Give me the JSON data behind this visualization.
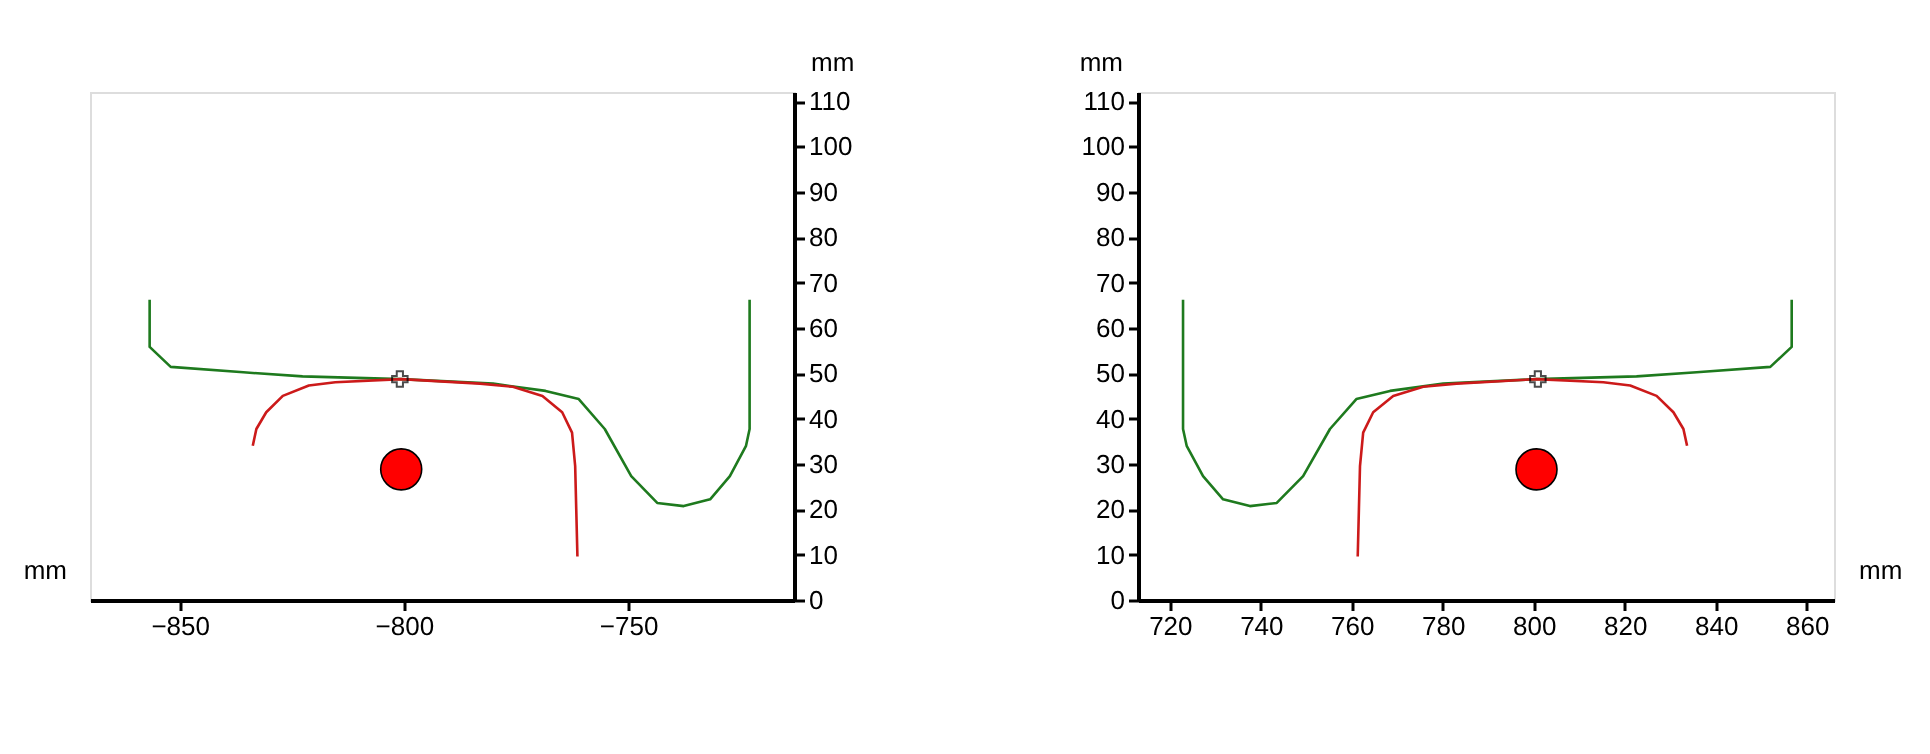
{
  "chart_data": [
    {
      "type": "line",
      "xlabel": "mm",
      "ylabel": "mm",
      "xlim": [
        -870,
        -713
      ],
      "xticks": [
        -850,
        -800,
        -750
      ],
      "ylim": [
        0,
        112
      ],
      "yticks": [
        0,
        10,
        20,
        30,
        40,
        50,
        60,
        70,
        80,
        90,
        100,
        110
      ],
      "grid": false,
      "series": [
        {
          "color": "#1e7a1e",
          "x": [
            -856.7,
            -856.7,
            -852,
            -835.8,
            -822.6,
            -800.6,
            -780.1,
            -768.4,
            -761,
            -755.2,
            -749.3,
            -743.5,
            -737.6,
            -731.7,
            -727.3,
            -723.7,
            -722.9,
            -722.9
          ],
          "values": [
            66.2,
            55.8,
            51.4,
            50.2,
            49.3,
            48.7,
            47.7,
            46.1,
            44.3,
            37.7,
            27.3,
            21.4,
            20.7,
            22.2,
            27.3,
            34,
            37.7,
            66.2
          ]
        },
        {
          "color": "#cc1a1a",
          "x": [
            -833.7,
            -832.9,
            -830.7,
            -827,
            -821.2,
            -815.3,
            -800.6,
            -783,
            -775.7,
            -769.1,
            -764.7,
            -762.5,
            -761.8,
            -761.3
          ],
          "values": [
            34,
            37.7,
            41.4,
            45,
            47.3,
            48,
            48.7,
            47.7,
            47,
            45,
            41.4,
            36.9,
            29.5,
            9.6
          ]
        },
        {
          "type": "scatter",
          "marker": "circle",
          "color": "#ff0000",
          "x": [
            -800.6
          ],
          "values": [
            28.8
          ]
        },
        {
          "type": "scatter",
          "marker": "cross",
          "color": "#000000",
          "x": [
            -800.9
          ],
          "values": [
            48.7
          ]
        }
      ]
    },
    {
      "type": "line",
      "xlabel": "mm",
      "ylabel": "mm",
      "xlim": [
        713,
        866
      ],
      "xticks": [
        720,
        740,
        760,
        780,
        800,
        820,
        840,
        860
      ],
      "ylim": [
        0,
        112
      ],
      "yticks": [
        0,
        10,
        20,
        30,
        40,
        50,
        60,
        70,
        80,
        90,
        100,
        110
      ],
      "grid": false,
      "series": [
        {
          "color": "#1e7a1e",
          "x": [
            722.9,
            722.9,
            723.7,
            727.3,
            731.7,
            737.6,
            743.5,
            749.3,
            755.2,
            761,
            768.4,
            780.1,
            800.6,
            822.6,
            835.8,
            852,
            856.7,
            856.7
          ],
          "values": [
            66.2,
            37.7,
            34,
            27.3,
            22.2,
            20.7,
            21.4,
            27.3,
            37.7,
            44.3,
            46.1,
            47.7,
            48.7,
            49.3,
            50.2,
            51.4,
            55.8,
            66.2
          ]
        },
        {
          "color": "#cc1a1a",
          "x": [
            761.3,
            761.8,
            762.5,
            764.7,
            769.1,
            775.7,
            783,
            800.6,
            815.3,
            821.2,
            827,
            830.7,
            832.9,
            833.7
          ],
          "values": [
            9.6,
            29.5,
            36.9,
            41.4,
            45,
            47,
            47.7,
            48.7,
            48,
            47.3,
            45,
            41.4,
            37.7,
            34
          ]
        },
        {
          "type": "scatter",
          "marker": "circle",
          "color": "#ff0000",
          "x": [
            800.6
          ],
          "values": [
            28.8
          ]
        },
        {
          "type": "scatter",
          "marker": "cross",
          "color": "#000000",
          "x": [
            800.9
          ],
          "values": [
            48.7
          ]
        }
      ]
    }
  ]
}
